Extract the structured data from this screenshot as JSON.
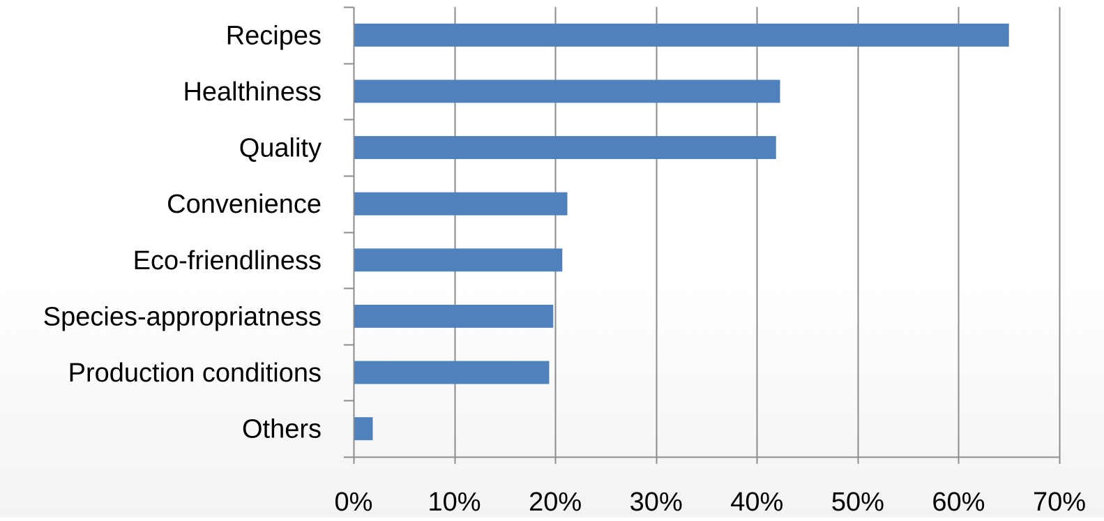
{
  "chart_data": {
    "type": "bar",
    "orientation": "horizontal",
    "title": "",
    "xlabel": "",
    "ylabel": "",
    "categories": [
      "Recipes",
      "Healthiness",
      "Quality",
      "Convenience",
      "Eco-friendliness",
      "Species-appropriatness",
      "Production conditions",
      "Others"
    ],
    "values": [
      65,
      42.3,
      41.9,
      21.2,
      20.7,
      19.8,
      19.4,
      1.9
    ],
    "xlim": [
      0,
      70
    ],
    "xticks": [
      0,
      10,
      20,
      30,
      40,
      50,
      60,
      70
    ],
    "xtick_labels": [
      "0%",
      "10%",
      "20%",
      "30%",
      "40%",
      "50%",
      "60%",
      "70%"
    ],
    "value_unit": "%",
    "grid": "vertical",
    "legend": "none",
    "colors": {
      "bar": "#4f81bd",
      "grid": "#8c8c8c",
      "axis": "#8c8c8c"
    }
  }
}
